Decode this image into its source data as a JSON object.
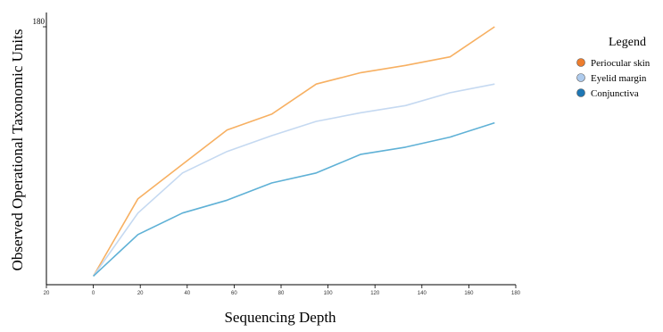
{
  "chart_data": {
    "type": "line",
    "xlabel": "Sequencing Depth",
    "ylabel": "Observed Operational Taxonomic Units",
    "xlim": [
      -20,
      180
    ],
    "ylim": [
      0,
      180
    ],
    "x_ticks": [
      "20",
      "0",
      "20",
      "40",
      "60",
      "80",
      "100",
      "120",
      "140",
      "160",
      "180"
    ],
    "y_ticks": [
      "180"
    ],
    "legend": {
      "title": "Legend",
      "position": "right"
    },
    "x": [
      0,
      19,
      38,
      57,
      76,
      95,
      114,
      133,
      152,
      171
    ],
    "series": [
      {
        "name": "Periocular skin",
        "color": "#f7b062",
        "marker_color": "#ed7d2e",
        "values": [
          6,
          60,
          84,
          108,
          119,
          140,
          148,
          153,
          159,
          180
        ]
      },
      {
        "name": "Eyelid margin",
        "color": "#c5d9f1",
        "marker_color": "#aecbed",
        "values": [
          6,
          50,
          78,
          93,
          104,
          114,
          120,
          125,
          134,
          140
        ]
      },
      {
        "name": "Conjunctiva",
        "color": "#5fb1d6",
        "marker_color": "#1f77b4",
        "values": [
          6,
          35,
          50,
          59,
          71,
          78,
          91,
          96,
          103,
          113
        ]
      }
    ]
  }
}
